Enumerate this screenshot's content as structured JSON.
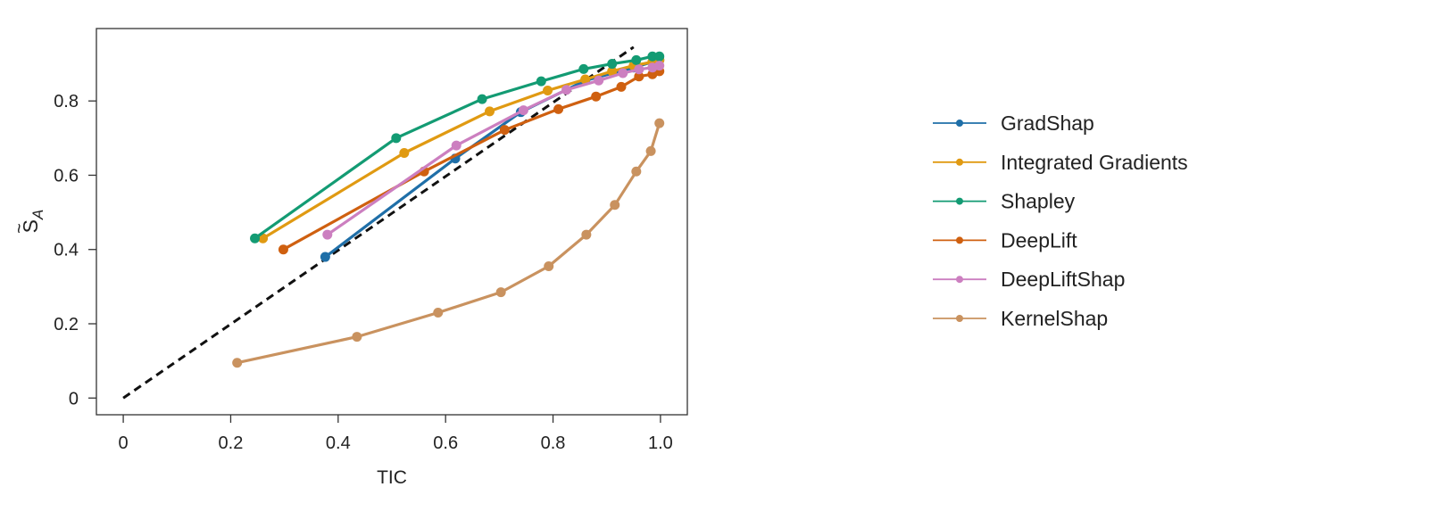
{
  "chart_data": {
    "type": "line",
    "xlabel": "TIC",
    "ylabel_base": "S",
    "ylabel_sub": "A",
    "xlim": [
      -0.05,
      1.05
    ],
    "ylim": [
      -0.045,
      0.995
    ],
    "xticks": [
      0,
      0.2,
      0.4,
      0.6,
      0.8,
      1.0
    ],
    "xtick_labels": [
      "0",
      "0.2",
      "0.4",
      "0.6",
      "0.8",
      "1.0"
    ],
    "yticks": [
      0,
      0.2,
      0.4,
      0.6,
      0.8
    ],
    "ytick_labels": [
      "0",
      "0.2",
      "0.4",
      "0.6",
      "0.8"
    ],
    "reference_line": {
      "style": "dashed",
      "color": "#000000",
      "x": [
        0,
        0.95
      ],
      "y": [
        0,
        0.945
      ]
    },
    "legend_position": "right",
    "series": [
      {
        "name": "GradShap",
        "color": "#1f6fa8",
        "x": [
          0.376,
          0.618,
          0.74,
          0.86,
          0.95,
          0.985,
          0.998
        ],
        "y": [
          0.38,
          0.645,
          0.77,
          0.855,
          0.89,
          0.905,
          0.91
        ]
      },
      {
        "name": "Integrated Gradients",
        "color": "#e09a12",
        "x": [
          0.26,
          0.523,
          0.682,
          0.79,
          0.86,
          0.91,
          0.95,
          0.985,
          0.998
        ],
        "y": [
          0.43,
          0.66,
          0.772,
          0.828,
          0.858,
          0.88,
          0.895,
          0.905,
          0.91
        ]
      },
      {
        "name": "Shapley",
        "color": "#139b73",
        "x": [
          0.245,
          0.508,
          0.668,
          0.778,
          0.857,
          0.91,
          0.955,
          0.985,
          0.998
        ],
        "y": [
          0.43,
          0.7,
          0.805,
          0.853,
          0.886,
          0.9,
          0.91,
          0.92,
          0.92
        ]
      },
      {
        "name": "DeepLift",
        "color": "#cf6010",
        "x": [
          0.298,
          0.56,
          0.71,
          0.81,
          0.88,
          0.927,
          0.96,
          0.985,
          0.998
        ],
        "y": [
          0.4,
          0.61,
          0.722,
          0.778,
          0.812,
          0.838,
          0.866,
          0.872,
          0.88
        ]
      },
      {
        "name": "DeepLiftShap",
        "color": "#cc7fc0",
        "x": [
          0.38,
          0.62,
          0.745,
          0.825,
          0.885,
          0.93,
          0.96,
          0.985,
          0.998
        ],
        "y": [
          0.44,
          0.68,
          0.775,
          0.83,
          0.855,
          0.875,
          0.885,
          0.89,
          0.895
        ]
      },
      {
        "name": "KernelShap",
        "color": "#c9925f",
        "x": [
          0.212,
          0.435,
          0.586,
          0.703,
          0.792,
          0.862,
          0.915,
          0.955,
          0.982,
          0.998
        ],
        "y": [
          0.095,
          0.165,
          0.23,
          0.285,
          0.355,
          0.44,
          0.52,
          0.61,
          0.665,
          0.74
        ]
      }
    ]
  }
}
